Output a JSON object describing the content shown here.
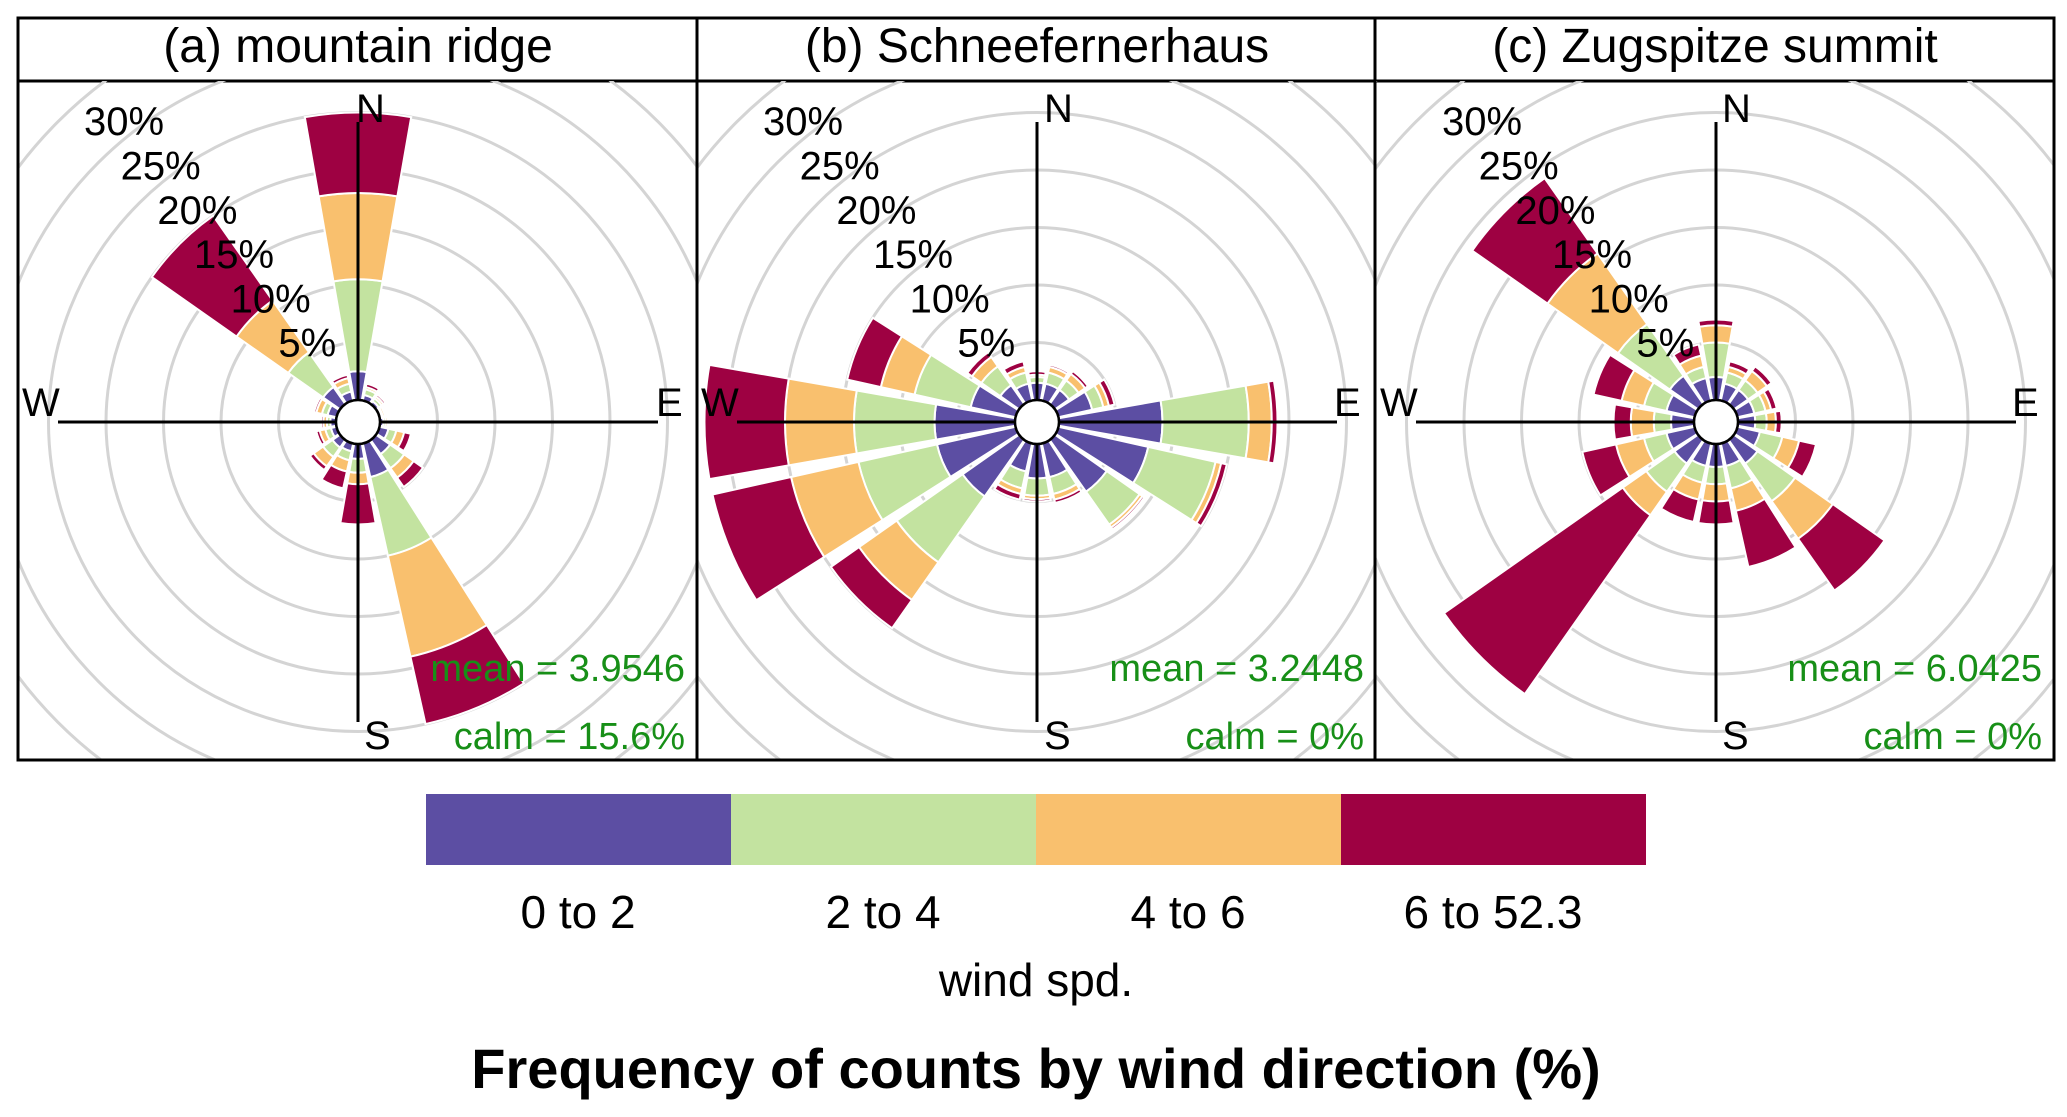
{
  "chart_data": [
    {
      "type": "windrose",
      "title": "(a) mountain ridge",
      "directions": [
        "N",
        "NNE",
        "NE",
        "ENE",
        "E",
        "ESE",
        "SE",
        "SSE",
        "S",
        "SSW",
        "SW",
        "WSW",
        "W",
        "WNW",
        "NW",
        "NNW"
      ],
      "radial_ticks": [
        "5%",
        "10%",
        "15%",
        "20%",
        "25%",
        "30%"
      ],
      "rmax": 30,
      "cumulative": [
        [
          2.5,
          10.5,
          18.0,
          25.0
        ],
        [
          0.5,
          1.0,
          1.2,
          1.5
        ],
        [
          0.3,
          0.6,
          0.8,
          1.0
        ],
        [
          0.2,
          0.3,
          0.5,
          0.6
        ],
        [
          0.3,
          0.5,
          0.7,
          0.8
        ],
        [
          0.8,
          1.5,
          2.2,
          2.8
        ],
        [
          1.5,
          3.0,
          4.0,
          5.0
        ],
        [
          3.0,
          10.0,
          19.0,
          25.0
        ],
        [
          1.3,
          2.5,
          3.5,
          7.0
        ],
        [
          0.7,
          1.5,
          2.5,
          4.0
        ],
        [
          0.8,
          1.8,
          2.8,
          3.2
        ],
        [
          0.5,
          1.0,
          1.5,
          1.8
        ],
        [
          0.5,
          0.8,
          1.1,
          1.3
        ],
        [
          0.8,
          1.3,
          1.8,
          2.0
        ],
        [
          1.8,
          5.5,
          11.0,
          20.0
        ],
        [
          0.8,
          1.5,
          2.0,
          2.3
        ]
      ],
      "mean_label": "mean = 3.9546",
      "calm_label": "calm = 15.6%"
    },
    {
      "type": "windrose",
      "title": "(b) Schneefernerhaus",
      "directions": [
        "N",
        "NNE",
        "NE",
        "ENE",
        "E",
        "ESE",
        "SE",
        "SSE",
        "S",
        "SSW",
        "SW",
        "WSW",
        "W",
        "WNW",
        "NW",
        "NNW"
      ],
      "radial_ticks": [
        "5%",
        "10%",
        "15%",
        "20%",
        "25%",
        "30%"
      ],
      "rmax": 30,
      "cumulative": [
        [
          1.5,
          2.0,
          2.2,
          2.5
        ],
        [
          1.5,
          2.5,
          3.0,
          3.2
        ],
        [
          1.5,
          2.5,
          3.2,
          3.5
        ],
        [
          3.0,
          4.0,
          4.5,
          5.0
        ],
        [
          9.0,
          16.5,
          18.5,
          19.0
        ],
        [
          8.0,
          14.0,
          14.5,
          15.0
        ],
        [
          5.5,
          9.0,
          9.3,
          9.5
        ],
        [
          3.0,
          4.5,
          5.0,
          5.3
        ],
        [
          3.0,
          4.5,
          4.8,
          5.0
        ],
        [
          2.5,
          4.0,
          4.5,
          5.0
        ],
        [
          6.0,
          13.0,
          17.0,
          20.0
        ],
        [
          7.0,
          14.0,
          20.0,
          27.0
        ],
        [
          7.0,
          14.0,
          20.0,
          27.0
        ],
        [
          4.0,
          9.0,
          12.0,
          15.0
        ],
        [
          2.0,
          4.0,
          5.0,
          5.5
        ],
        [
          1.5,
          2.5,
          3.0,
          3.5
        ]
      ],
      "mean_label": "mean = 3.2448",
      "calm_label": "calm = 0%"
    },
    {
      "type": "windrose",
      "title": "(c) Zugspitze summit",
      "directions": [
        "N",
        "NNE",
        "NE",
        "ENE",
        "E",
        "ESE",
        "SE",
        "SSE",
        "S",
        "SSW",
        "SW",
        "WSW",
        "W",
        "WNW",
        "NW",
        "NNW"
      ],
      "radial_ticks": [
        "5%",
        "10%",
        "15%",
        "20%",
        "25%",
        "30%"
      ],
      "rmax": 30,
      "cumulative": [
        [
          2.0,
          5.0,
          6.5,
          7.0
        ],
        [
          1.5,
          2.5,
          3.0,
          3.5
        ],
        [
          1.5,
          2.5,
          3.5,
          4.0
        ],
        [
          1.5,
          2.5,
          3.0,
          3.5
        ],
        [
          1.5,
          2.5,
          3.3,
          3.8
        ],
        [
          2.0,
          4.0,
          5.5,
          7.0
        ],
        [
          2.5,
          6.5,
          10.5,
          16.0
        ],
        [
          2.0,
          4.0,
          6.0,
          11.0
        ],
        [
          2.0,
          3.5,
          5.0,
          7.0
        ],
        [
          2.0,
          3.5,
          5.0,
          7.0
        ],
        [
          2.5,
          5.5,
          8.0,
          27.0
        ],
        [
          2.5,
          4.5,
          7.0,
          10.0
        ],
        [
          2.0,
          3.5,
          5.5,
          7.0
        ],
        [
          2.5,
          4.5,
          6.5,
          9.0
        ],
        [
          3.0,
          8.5,
          16.0,
          24.0
        ],
        [
          2.0,
          3.0,
          4.0,
          5.0
        ]
      ],
      "mean_label": "mean = 6.0425",
      "calm_label": "calm = 0%"
    }
  ],
  "compass": {
    "n": "N",
    "e": "E",
    "s": "S",
    "w": "W"
  },
  "legend": {
    "bins": [
      {
        "label": "0 to 2",
        "color": "#5c4ea3"
      },
      {
        "label": "2 to 4",
        "color": "#c3e3a0"
      },
      {
        "label": "4 to 6",
        "color": "#f9c06e"
      },
      {
        "label": "6 to 52.3",
        "color": "#9e0142"
      }
    ],
    "title": "wind spd."
  },
  "caption": "Frequency of counts by wind direction (%)",
  "colors": {
    "ring": "#d4d4d4",
    "stat_text": "#178f17"
  }
}
